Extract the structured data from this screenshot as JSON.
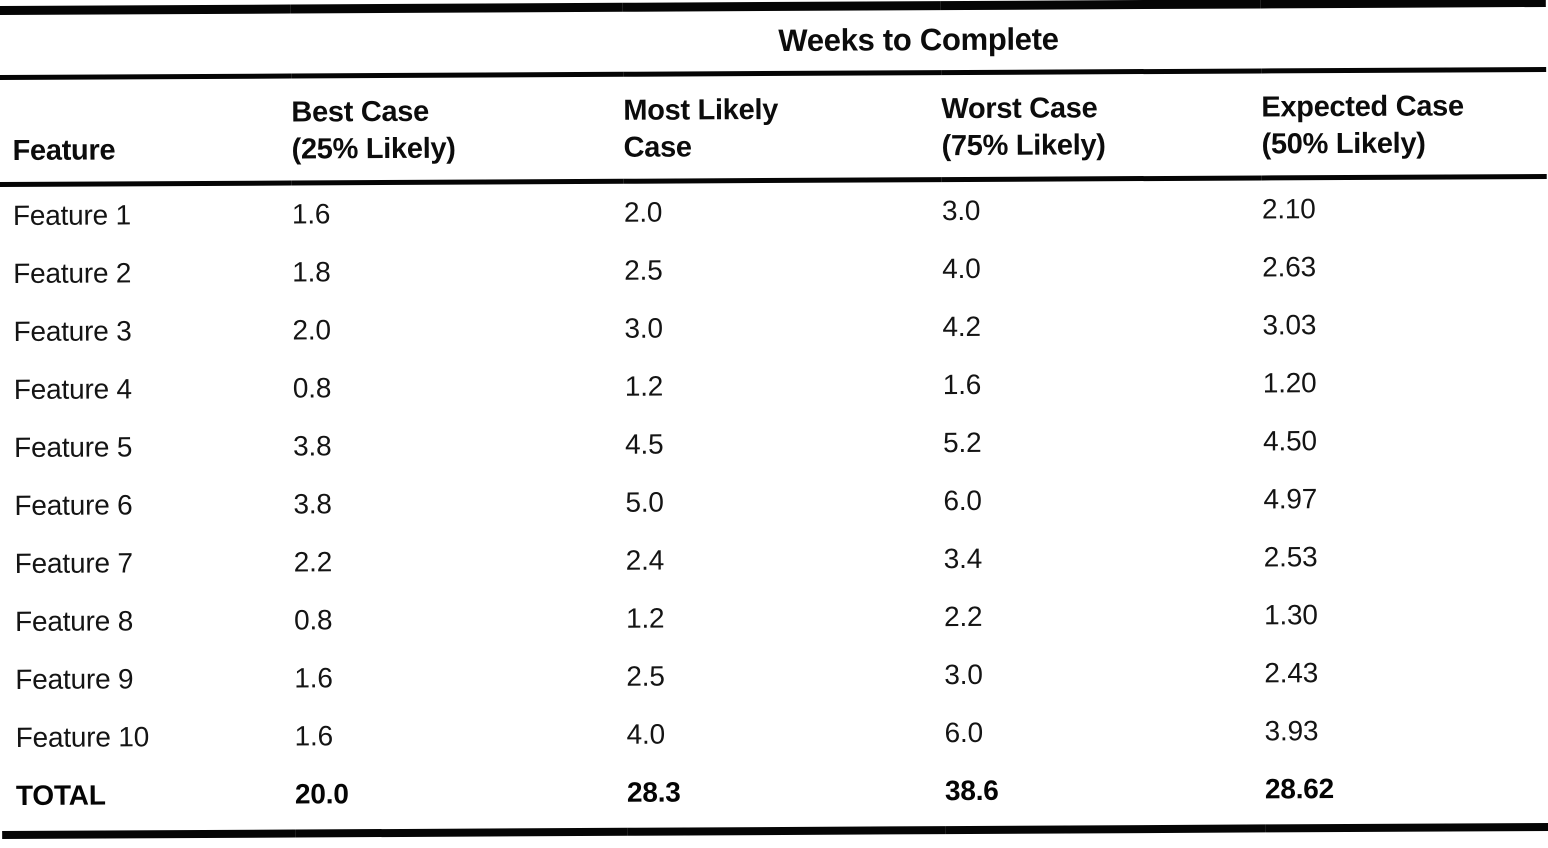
{
  "table": {
    "title": "Weeks to Complete",
    "columns": [
      "Feature",
      "Best Case\n(25% Likely)",
      "Most Likely\nCase",
      "Worst Case\n(75% Likely)",
      "Expected Case\n(50% Likely)"
    ],
    "rows": [
      [
        "Feature 1",
        "1.6",
        "2.0",
        "3.0",
        "2.10"
      ],
      [
        "Feature 2",
        "1.8",
        "2.5",
        "4.0",
        "2.63"
      ],
      [
        "Feature 3",
        "2.0",
        "3.0",
        "4.2",
        "3.03"
      ],
      [
        "Feature 4",
        "0.8",
        "1.2",
        "1.6",
        "1.20"
      ],
      [
        "Feature 5",
        "3.8",
        "4.5",
        "5.2",
        "4.50"
      ],
      [
        "Feature 6",
        "3.8",
        "5.0",
        "6.0",
        "4.97"
      ],
      [
        "Feature 7",
        "2.2",
        "2.4",
        "3.4",
        "2.53"
      ],
      [
        "Feature 8",
        "0.8",
        "1.2",
        "2.2",
        "1.30"
      ],
      [
        "Feature 9",
        "1.6",
        "2.5",
        "3.0",
        "2.43"
      ],
      [
        "Feature 10",
        "1.6",
        "4.0",
        "6.0",
        "3.93"
      ]
    ],
    "total_row": [
      "TOTAL",
      "20.0",
      "28.3",
      "38.6",
      "28.62"
    ],
    "ink_color": "#0c0c0c",
    "paper_color": "#ffffff"
  }
}
